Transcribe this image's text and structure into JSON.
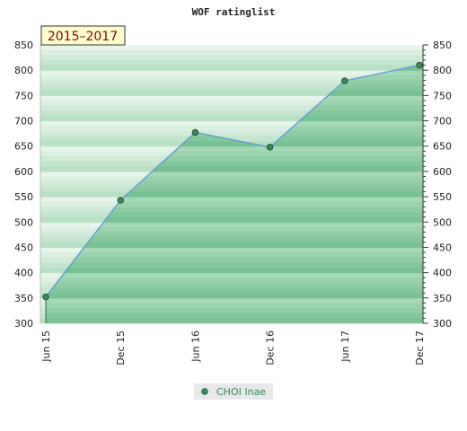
{
  "chart_data": {
    "type": "area",
    "title": "WOF ratinglist",
    "badge": "2015–2017",
    "x": [
      "Jun 15",
      "Dec 15",
      "Jun 16",
      "Dec 16",
      "Jun 17",
      "Dec 17"
    ],
    "series": [
      {
        "name": "CHOI Inae",
        "values": [
          352,
          543,
          677,
          648,
          779,
          810
        ]
      }
    ],
    "ylim": [
      300,
      850
    ],
    "yticks": [
      300,
      350,
      400,
      450,
      500,
      550,
      600,
      650,
      700,
      750,
      800,
      850
    ],
    "grid": true,
    "legend": "bottom-center",
    "colors": {
      "line": "#5b9bd5",
      "marker": "#3c8f5a",
      "fill_dark": "#79c194",
      "fill_light": "#a6d8b6",
      "band_dark": "#b8e0c5",
      "band_light": "#e6f4ea",
      "badge_bg": "#ffffcc"
    }
  }
}
